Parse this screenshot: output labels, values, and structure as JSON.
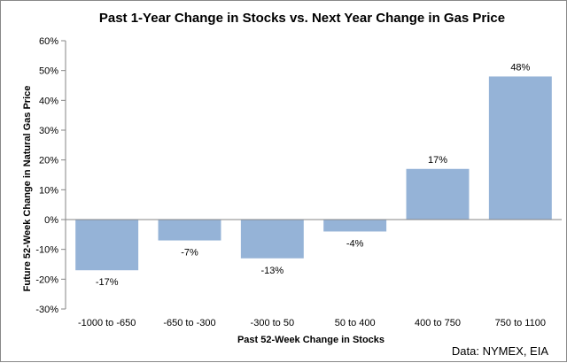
{
  "chart_data": {
    "type": "bar",
    "title": "Past 1-Year Change in Stocks vs. Next Year Change in Gas Price",
    "xlabel": "Past 52-Week Change in Stocks",
    "ylabel": "Future 52-Week Change in Natural Gas Price",
    "categories": [
      "-1000 to -650",
      "-650 to -300",
      "-300 to 50",
      "50 to 400",
      "400 to 750",
      "750 to 1100"
    ],
    "values": [
      -17,
      -7,
      -13,
      -4,
      17,
      48
    ],
    "value_labels": [
      "-17%",
      "-7%",
      "-13%",
      "-4%",
      "17%",
      "48%"
    ],
    "ylim": [
      -30,
      60
    ],
    "y_ticks": [
      60,
      50,
      40,
      30,
      20,
      10,
      0,
      -10,
      -20,
      -30
    ],
    "y_tick_labels": [
      "60%",
      "50%",
      "40%",
      "30%",
      "20%",
      "10%",
      "0%",
      "-10%",
      "-20%",
      "-30%"
    ],
    "grid": false,
    "legend": "none",
    "bar_color": "#95b3d7",
    "axis_color": "#868686",
    "source_note": "Data: NYMEX, EIA"
  }
}
